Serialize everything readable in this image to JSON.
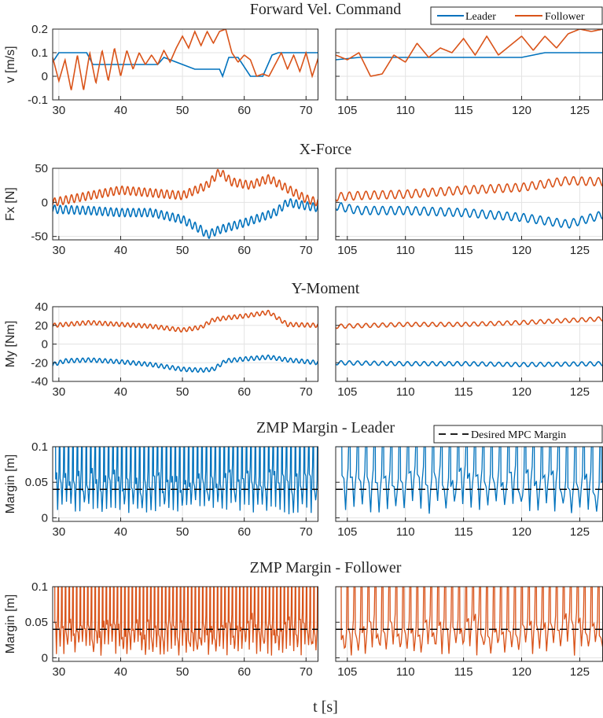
{
  "chart_data": {
    "type": "line",
    "xlabel": "t [s]",
    "colors": {
      "leader": "#0072BD",
      "follower": "#D95319",
      "desired": "#000000"
    },
    "x_ranges": {
      "left": {
        "xlim": [
          29,
          72
        ],
        "ticks": [
          30,
          40,
          50,
          60,
          70
        ]
      },
      "right": {
        "xlim": [
          104,
          127
        ],
        "ticks": [
          105,
          110,
          115,
          120,
          125
        ]
      }
    },
    "panels": [
      {
        "id": "vel",
        "title": "Forward Vel. Command",
        "ylabel": "v [m/s]",
        "ylim": [
          -0.1,
          0.2
        ],
        "yticks": [
          -0.1,
          0,
          0.1,
          0.2
        ],
        "ytick_labels": [
          "-0.1",
          "0",
          "0.1",
          "0.2"
        ],
        "legend": [
          "Leader",
          "Follower"
        ],
        "series": [
          {
            "name": "Leader",
            "segments": [
              {
                "side": "left",
                "x": [
                  29,
                  30,
                  34.5,
                  35.5,
                  46,
                  47,
                  52,
                  56,
                  56.5,
                  57.5,
                  59,
                  61,
                  62,
                  63,
                  64.5,
                  65.5,
                  72
                ],
                "y": [
                  0.06,
                  0.1,
                  0.1,
                  0.05,
                  0.05,
                  0.08,
                  0.03,
                  0.03,
                  0.0,
                  0.08,
                  0.08,
                  0.0,
                  0.0,
                  0.0,
                  0.09,
                  0.1,
                  0.1
                ]
              },
              {
                "side": "right",
                "x": [
                  104,
                  106,
                  110,
                  115,
                  120,
                  121,
                  122,
                  127
                ],
                "y": [
                  0.07,
                  0.08,
                  0.08,
                  0.08,
                  0.08,
                  0.09,
                  0.1,
                  0.1
                ]
              }
            ]
          },
          {
            "name": "Follower",
            "segments": [
              {
                "side": "left",
                "x": [
                  29,
                  30,
                  31,
                  32,
                  33,
                  34,
                  35,
                  36,
                  37,
                  38,
                  39,
                  40,
                  41,
                  42,
                  43,
                  44,
                  45,
                  46,
                  47,
                  48,
                  49,
                  50,
                  51,
                  52,
                  53,
                  54,
                  55,
                  56,
                  57,
                  58,
                  59,
                  60,
                  61,
                  62,
                  63,
                  64,
                  65,
                  66,
                  67,
                  68,
                  69,
                  70,
                  71,
                  72
                ],
                "y": [
                  0.08,
                  -0.02,
                  0.07,
                  -0.06,
                  0.09,
                  -0.06,
                  0.1,
                  -0.03,
                  0.11,
                  -0.02,
                  0.12,
                  0.0,
                  0.11,
                  0.03,
                  0.1,
                  0.05,
                  0.09,
                  0.05,
                  0.11,
                  0.06,
                  0.12,
                  0.17,
                  0.12,
                  0.19,
                  0.13,
                  0.19,
                  0.14,
                  0.19,
                  0.2,
                  0.1,
                  0.06,
                  0.09,
                  0.07,
                  0.0,
                  0.01,
                  0.0,
                  0.05,
                  0.1,
                  0.03,
                  0.09,
                  0.02,
                  0.1,
                  0.0,
                  0.08
                ]
              },
              {
                "side": "right",
                "x": [
                  104,
                  105,
                  106,
                  107,
                  108,
                  109,
                  110,
                  111,
                  112,
                  113,
                  114,
                  115,
                  116,
                  117,
                  118,
                  119,
                  120,
                  121,
                  122,
                  123,
                  124,
                  125,
                  126,
                  127
                ],
                "y": [
                  0.09,
                  0.07,
                  0.1,
                  0.0,
                  0.01,
                  0.09,
                  0.06,
                  0.14,
                  0.08,
                  0.12,
                  0.1,
                  0.16,
                  0.09,
                  0.17,
                  0.09,
                  0.13,
                  0.17,
                  0.11,
                  0.17,
                  0.12,
                  0.18,
                  0.2,
                  0.19,
                  0.2
                ]
              }
            ]
          }
        ]
      },
      {
        "id": "fx",
        "title": "X-Force",
        "ylabel": "Fx [N]",
        "ylim": [
          -55,
          50
        ],
        "yticks": [
          -50,
          0,
          50
        ],
        "ytick_labels": [
          "-50",
          "0",
          "50"
        ],
        "series": [
          {
            "name": "Leader",
            "segments": [
              {
                "side": "left",
                "x": [
                  29,
                  35,
                  40,
                  45,
                  50,
                  53,
                  54,
                  56,
                  60,
                  65,
                  67,
                  70,
                  72
                ],
                "y": [
                  -10,
                  -12,
                  -15,
                  -15,
                  -25,
                  -40,
                  -48,
                  -40,
                  -30,
                  -15,
                  0,
                  -5,
                  -8
                ]
              },
              {
                "side": "right",
                "x": [
                  104,
                  106,
                  110,
                  115,
                  120,
                  124,
                  127
                ],
                "y": [
                  -5,
                  -12,
                  -12,
                  -15,
                  -22,
                  -32,
                  -18
                ]
              }
            ]
          },
          {
            "name": "Follower",
            "segments": [
              {
                "side": "left",
                "x": [
                  29,
                  35,
                  40,
                  45,
                  50,
                  54,
                  56,
                  58,
                  61,
                  64,
                  66,
                  70,
                  72
                ],
                "y": [
                  0,
                  10,
                  18,
                  14,
                  10,
                  25,
                  45,
                  30,
                  25,
                  35,
                  25,
                  5,
                  0
                ]
              },
              {
                "side": "right",
                "x": [
                  104,
                  106,
                  110,
                  115,
                  120,
                  124,
                  127
                ],
                "y": [
                  8,
                  10,
                  12,
                  18,
                  22,
                  32,
                  30
                ]
              }
            ]
          }
        ]
      },
      {
        "id": "my",
        "title": "Y-Moment",
        "ylabel": "My [Nm]",
        "ylim": [
          -40,
          40
        ],
        "yticks": [
          -40,
          -20,
          0,
          20,
          40
        ],
        "ytick_labels": [
          "-40",
          "-20",
          "0",
          "20",
          "40"
        ],
        "series": [
          {
            "name": "Leader",
            "segments": [
              {
                "side": "left",
                "x": [
                  29,
                  31,
                  35,
                  40,
                  45,
                  50,
                  53,
                  55,
                  57,
                  60,
                  64,
                  67,
                  72
                ],
                "y": [
                  -22,
                  -18,
                  -17,
                  -19,
                  -22,
                  -27,
                  -28,
                  -27,
                  -18,
                  -16,
                  -14,
                  -17,
                  -20
                ]
              },
              {
                "side": "right",
                "x": [
                  104,
                  110,
                  115,
                  120,
                  127
                ],
                "y": [
                  -20,
                  -21,
                  -21,
                  -22,
                  -21
                ]
              }
            ]
          },
          {
            "name": "Follower",
            "segments": [
              {
                "side": "left",
                "x": [
                  29,
                  31,
                  35,
                  40,
                  45,
                  50,
                  53,
                  55,
                  57,
                  60,
                  64,
                  67,
                  72
                ],
                "y": [
                  20,
                  21,
                  23,
                  21,
                  19,
                  15,
                  18,
                  26,
                  28,
                  30,
                  34,
                  21,
                  20
                ]
              },
              {
                "side": "right",
                "x": [
                  104,
                  110,
                  115,
                  120,
                  127
                ],
                "y": [
                  19,
                  21,
                  21,
                  23,
                  27
                ]
              }
            ]
          }
        ]
      },
      {
        "id": "zmp_leader",
        "title": "ZMP Margin - Leader",
        "ylabel": "Margin [m]",
        "ylim": [
          -0.005,
          0.1
        ],
        "yticks": [
          0,
          0.05,
          0.1
        ],
        "ytick_labels": [
          "0",
          "0.05",
          "0.1"
        ],
        "legend": [
          "Desired MPC Margin"
        ],
        "desired_margin": 0.04,
        "series": [
          {
            "name": "Leader",
            "pattern": "step-spikes",
            "period_s": {
              "left": 0.72,
              "right": 0.72
            },
            "max": 0.1,
            "min": 0.005,
            "typical": 0.05
          }
        ]
      },
      {
        "id": "zmp_follower",
        "title": "ZMP Margin - Follower",
        "ylabel": "Margin [m]",
        "ylim": [
          -0.005,
          0.1
        ],
        "yticks": [
          0,
          0.05,
          0.1
        ],
        "ytick_labels": [
          "0",
          "0.05",
          "0.1"
        ],
        "desired_margin": 0.04,
        "series": [
          {
            "name": "Follower",
            "pattern": "step-spikes",
            "period_s": {
              "left": 0.6,
              "right": 0.6
            },
            "max": 0.1,
            "min": 0.003,
            "typical": 0.04
          }
        ]
      }
    ]
  }
}
